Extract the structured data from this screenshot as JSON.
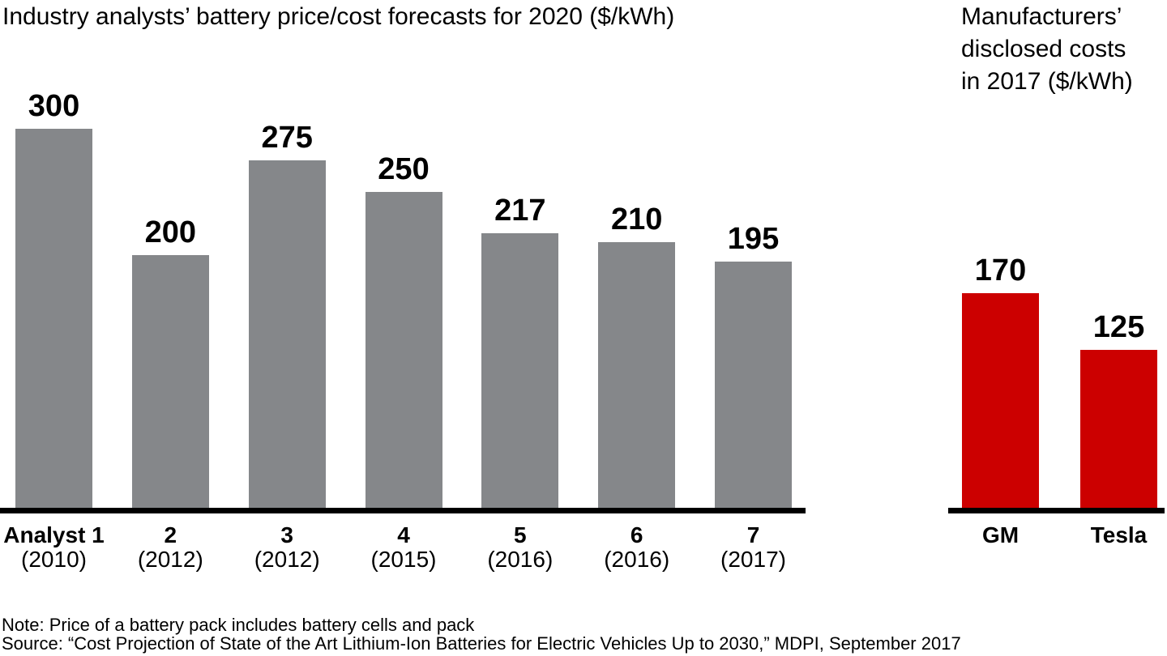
{
  "chart_data": [
    {
      "id": "analyst_forecasts",
      "type": "bar",
      "title": "Industry analysts’ battery price/cost forecasts for 2020 ($/kWh)",
      "categories": [
        "Analyst 1",
        "2",
        "3",
        "4",
        "5",
        "6",
        "7"
      ],
      "category_sublabels": [
        "(2010)",
        "(2012)",
        "(2012)",
        "(2015)",
        "(2016)",
        "(2016)",
        "(2017)"
      ],
      "values": [
        300,
        200,
        275,
        250,
        217,
        210,
        195
      ],
      "bar_color": "#85878A",
      "value_labels": [
        "300",
        "200",
        "275",
        "250",
        "217",
        "210",
        "195"
      ],
      "value_labels_position": "above-bar",
      "xlabel": "",
      "ylabel": "",
      "ylim": [
        0,
        320
      ],
      "grid": false,
      "y_axis_shown": false,
      "baseline_color": "#000000"
    },
    {
      "id": "manufacturer_costs",
      "type": "bar",
      "title": "Manufacturers’\ndisclosed costs\nin 2017 ($/kWh)",
      "categories": [
        "GM",
        "Tesla"
      ],
      "category_sublabels": [
        "",
        ""
      ],
      "values": [
        170,
        125
      ],
      "bar_color": "#CC0000",
      "value_labels": [
        "170",
        "125"
      ],
      "value_labels_position": "above-bar",
      "xlabel": "",
      "ylabel": "",
      "ylim": [
        0,
        320
      ],
      "grid": false,
      "y_axis_shown": false,
      "baseline_color": "#000000"
    }
  ],
  "footer": {
    "note": "Note: Price of a battery pack includes battery cells and pack",
    "source": "Source: “Cost Projection of State of the Art Lithium-Ion Batteries for Electric Vehicles Up to 2030,” MDPI, September 2017"
  },
  "colors": {
    "gray_bar": "#85878A",
    "red_bar": "#CC0000",
    "axis": "#000000",
    "text": "#000000",
    "background": "#FFFFFF"
  }
}
